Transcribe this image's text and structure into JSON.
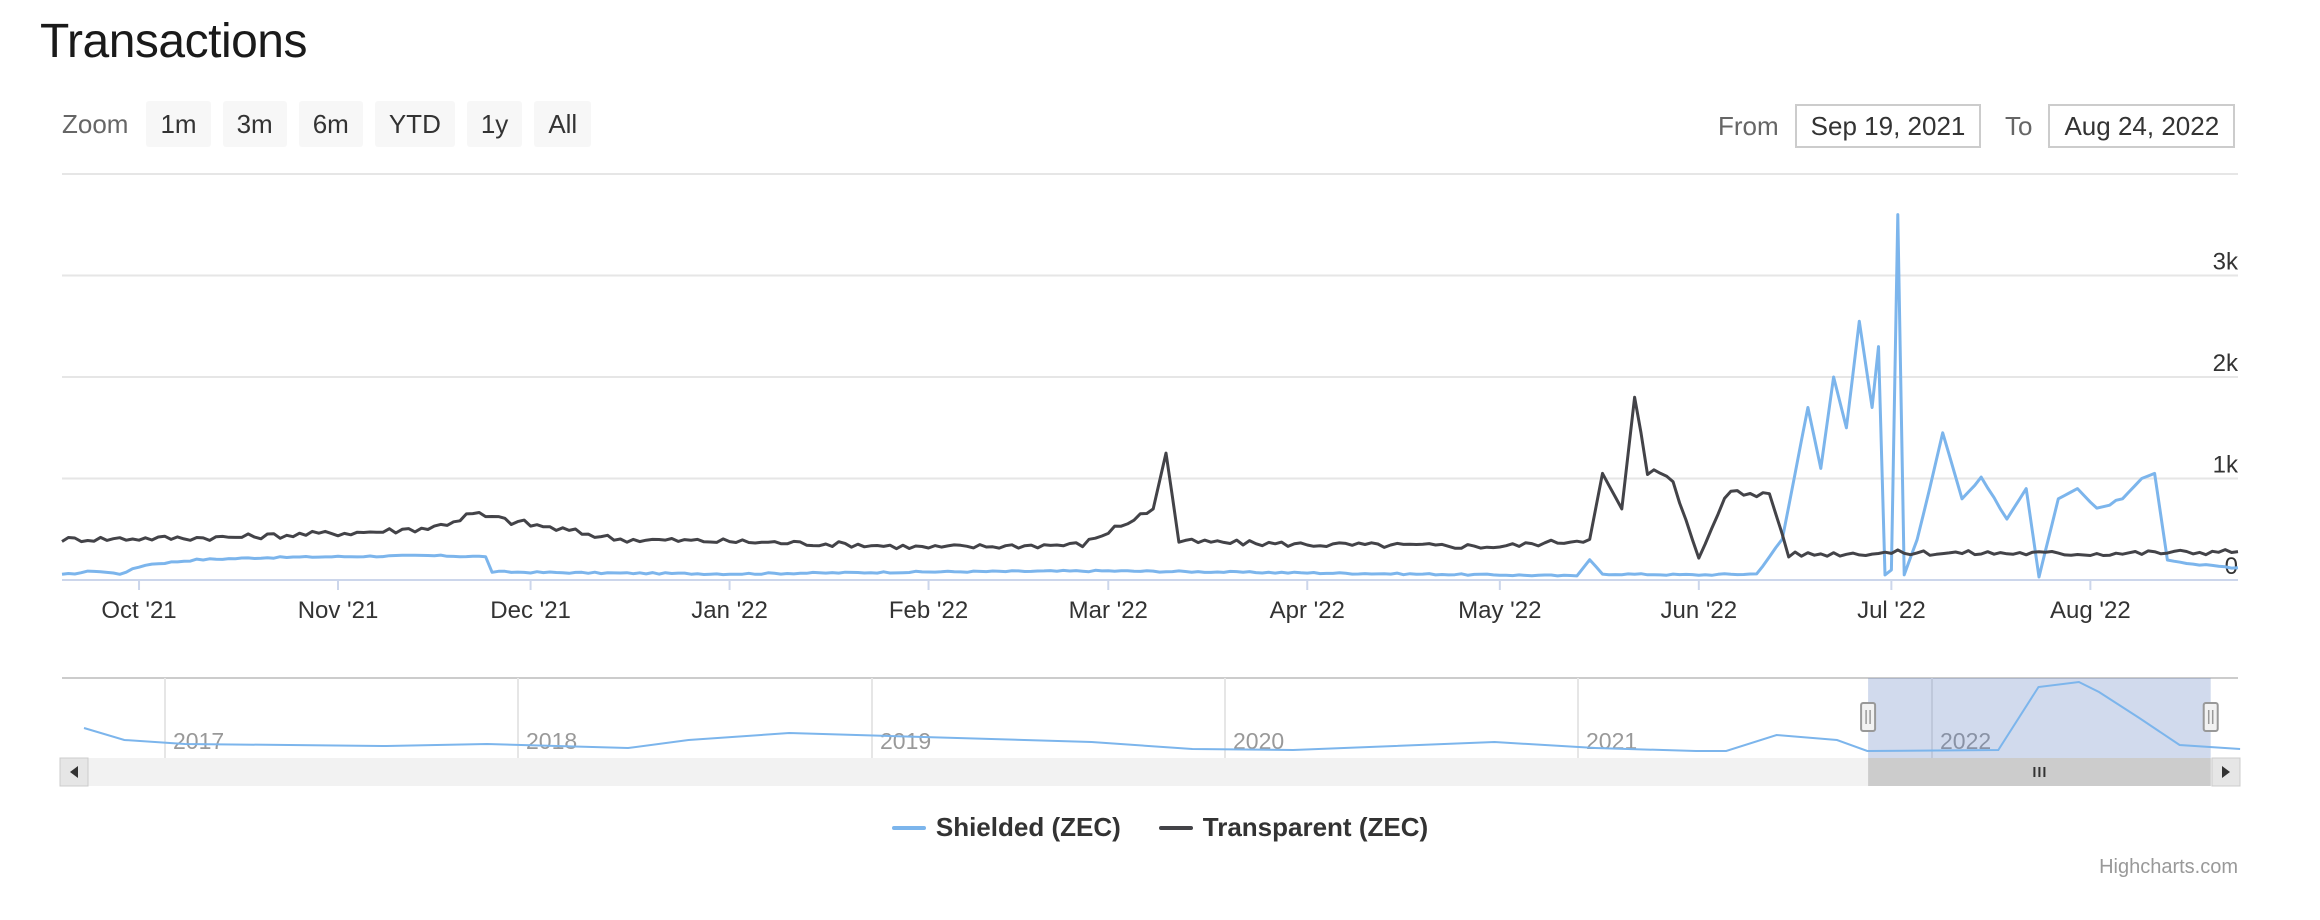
{
  "title": "Transactions",
  "zoom": {
    "label": "Zoom",
    "buttons": [
      "1m",
      "3m",
      "6m",
      "YTD",
      "1y",
      "All"
    ]
  },
  "range": {
    "from_label": "From",
    "from_value": "Sep 19, 2021",
    "to_label": "To",
    "to_value": "Aug 24, 2022"
  },
  "colors": {
    "shielded": "#7cb5ec",
    "transparent": "#434348",
    "navigator_mask": "rgba(102,133,194,0.3)",
    "grid": "#e6e6e6"
  },
  "legend": [
    {
      "name": "Shielded (ZEC)",
      "color": "#7cb5ec"
    },
    {
      "name": "Transparent (ZEC)",
      "color": "#434348"
    }
  ],
  "credits": "Highcharts.com",
  "chart_data": {
    "type": "line",
    "x_range": [
      "2021-09-19",
      "2022-08-24"
    ],
    "ylim": [
      0,
      4000
    ],
    "y_ticks": [
      0,
      1000,
      2000,
      3000
    ],
    "y_tick_labels": [
      "0",
      "1k",
      "2k",
      "3k"
    ],
    "x_tick_labels": [
      {
        "date": "2021-10-01",
        "label": "Oct '21"
      },
      {
        "date": "2021-11-01",
        "label": "Nov '21"
      },
      {
        "date": "2021-12-01",
        "label": "Dec '21"
      },
      {
        "date": "2022-01-01",
        "label": "Jan '22"
      },
      {
        "date": "2022-02-01",
        "label": "Feb '22"
      },
      {
        "date": "2022-03-01",
        "label": "Mar '22"
      },
      {
        "date": "2022-04-01",
        "label": "Apr '22"
      },
      {
        "date": "2022-05-01",
        "label": "May '22"
      },
      {
        "date": "2022-06-01",
        "label": "Jun '22"
      },
      {
        "date": "2022-07-01",
        "label": "Jul '22"
      },
      {
        "date": "2022-08-01",
        "label": "Aug '22"
      }
    ],
    "series": [
      {
        "name": "Shielded (ZEC)",
        "points": [
          [
            "2021-09-19",
            50
          ],
          [
            "2021-09-24",
            90
          ],
          [
            "2021-09-28",
            60
          ],
          [
            "2021-10-02",
            150
          ],
          [
            "2021-10-10",
            200
          ],
          [
            "2021-10-20",
            220
          ],
          [
            "2021-11-01",
            230
          ],
          [
            "2021-11-15",
            240
          ],
          [
            "2021-11-24",
            230
          ],
          [
            "2021-11-25",
            80
          ],
          [
            "2021-12-10",
            70
          ],
          [
            "2022-01-01",
            60
          ],
          [
            "2022-02-01",
            80
          ],
          [
            "2022-03-01",
            90
          ],
          [
            "2022-04-01",
            70
          ],
          [
            "2022-05-01",
            50
          ],
          [
            "2022-05-13",
            40
          ],
          [
            "2022-05-15",
            200
          ],
          [
            "2022-05-17",
            60
          ],
          [
            "2022-06-01",
            50
          ],
          [
            "2022-06-10",
            60
          ],
          [
            "2022-06-14",
            400
          ],
          [
            "2022-06-18",
            1700
          ],
          [
            "2022-06-20",
            1100
          ],
          [
            "2022-06-22",
            2000
          ],
          [
            "2022-06-24",
            1500
          ],
          [
            "2022-06-26",
            2550
          ],
          [
            "2022-06-28",
            1700
          ],
          [
            "2022-06-29",
            2300
          ],
          [
            "2022-06-30",
            50
          ],
          [
            "2022-07-01",
            100
          ],
          [
            "2022-07-02",
            3600
          ],
          [
            "2022-07-03",
            50
          ],
          [
            "2022-07-05",
            400
          ],
          [
            "2022-07-09",
            1450
          ],
          [
            "2022-07-12",
            800
          ],
          [
            "2022-07-15",
            1000
          ],
          [
            "2022-07-19",
            600
          ],
          [
            "2022-07-22",
            900
          ],
          [
            "2022-07-24",
            30
          ],
          [
            "2022-07-27",
            800
          ],
          [
            "2022-07-30",
            900
          ],
          [
            "2022-08-02",
            700
          ],
          [
            "2022-08-06",
            800
          ],
          [
            "2022-08-09",
            1000
          ],
          [
            "2022-08-11",
            1050
          ],
          [
            "2022-08-13",
            200
          ],
          [
            "2022-08-18",
            150
          ],
          [
            "2022-08-24",
            120
          ]
        ]
      },
      {
        "name": "Transparent (ZEC)",
        "points": [
          [
            "2021-09-19",
            400
          ],
          [
            "2021-10-15",
            420
          ],
          [
            "2021-11-08",
            480
          ],
          [
            "2021-11-16",
            520
          ],
          [
            "2021-11-22",
            650
          ],
          [
            "2021-11-26",
            600
          ],
          [
            "2021-12-15",
            400
          ],
          [
            "2022-01-01",
            380
          ],
          [
            "2022-01-20",
            350
          ],
          [
            "2022-02-01",
            320
          ],
          [
            "2022-02-25",
            350
          ],
          [
            "2022-03-08",
            700
          ],
          [
            "2022-03-10",
            1250
          ],
          [
            "2022-03-12",
            380
          ],
          [
            "2022-04-01",
            350
          ],
          [
            "2022-05-01",
            330
          ],
          [
            "2022-05-15",
            400
          ],
          [
            "2022-05-17",
            1050
          ],
          [
            "2022-05-20",
            700
          ],
          [
            "2022-05-22",
            1800
          ],
          [
            "2022-05-24",
            1100
          ],
          [
            "2022-05-28",
            950
          ],
          [
            "2022-06-01",
            200
          ],
          [
            "2022-06-05",
            850
          ],
          [
            "2022-06-12",
            850
          ],
          [
            "2022-06-15",
            250
          ],
          [
            "2022-07-01",
            270
          ],
          [
            "2022-08-01",
            260
          ],
          [
            "2022-08-24",
            280
          ]
        ]
      }
    ],
    "navigator": {
      "year_labels": [
        "2017",
        "2018",
        "2019",
        "2020",
        "2021",
        "2022"
      ],
      "selected_range": [
        "2021-09-19",
        "2022-08-24"
      ]
    }
  }
}
